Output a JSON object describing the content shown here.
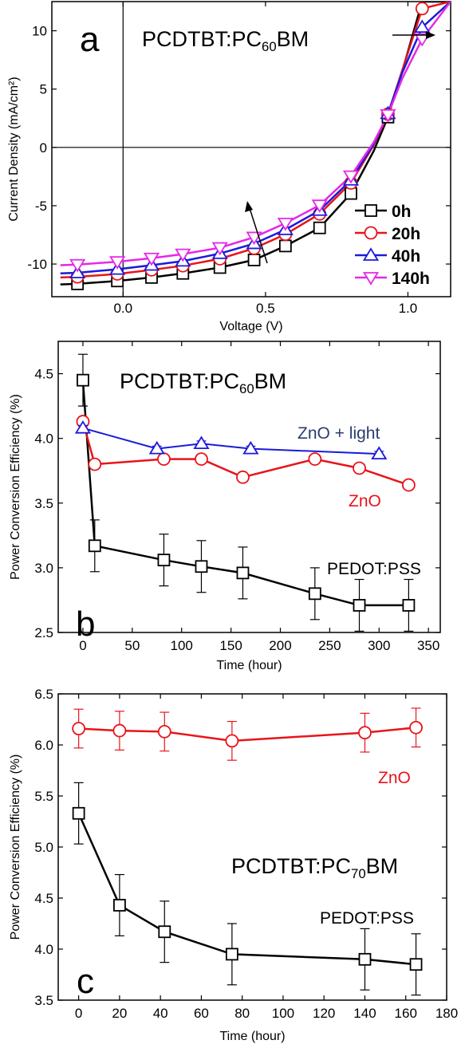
{
  "chart_data": [
    {
      "id": "a",
      "type": "line",
      "panel_label": "a",
      "title": "PCDTBT:PC",
      "title_sub": "60",
      "title_tail": "BM",
      "xlabel": "Voltage (V)",
      "ylabel": "Current Density (mA/cm²)",
      "xlim": [
        -0.25,
        1.15
      ],
      "ylim": [
        -12.8,
        12.5
      ],
      "xticks": [
        0.0,
        0.5,
        1.0
      ],
      "xtick_labels": [
        "0.0",
        "0.5",
        "1.0"
      ],
      "yticks": [
        -10,
        -5,
        0,
        5,
        10
      ],
      "ytick_labels": [
        "-10",
        "-5",
        "0",
        "5",
        "10"
      ],
      "legend_position": "bottom-right",
      "series": [
        {
          "name": "0h",
          "color": "#000000",
          "marker": "square",
          "points": [
            [
              -0.22,
              -11.75
            ],
            [
              -0.16,
              -11.7
            ],
            [
              -0.02,
              -11.45
            ],
            [
              0.1,
              -11.15
            ],
            [
              0.21,
              -10.8
            ],
            [
              0.34,
              -10.3
            ],
            [
              0.46,
              -9.65
            ],
            [
              0.57,
              -8.45
            ],
            [
              0.69,
              -6.9
            ],
            [
              0.8,
              -3.95
            ],
            [
              0.88,
              -0.3
            ],
            [
              0.93,
              2.6
            ],
            [
              0.98,
              6.5
            ],
            [
              1.05,
              12.5
            ],
            [
              1.15,
              12.5
            ]
          ]
        },
        {
          "name": "20h",
          "color": "#e8141a",
          "marker": "circle",
          "points": [
            [
              -0.22,
              -11.15
            ],
            [
              -0.16,
              -11.1
            ],
            [
              -0.02,
              -10.85
            ],
            [
              0.1,
              -10.5
            ],
            [
              0.21,
              -10.15
            ],
            [
              0.34,
              -9.55
            ],
            [
              0.46,
              -8.65
            ],
            [
              0.57,
              -7.45
            ],
            [
              0.69,
              -5.7
            ],
            [
              0.8,
              -3.05
            ],
            [
              0.88,
              0.2
            ],
            [
              0.93,
              2.85
            ],
            [
              0.98,
              6.6
            ],
            [
              1.05,
              11.9
            ],
            [
              1.15,
              12.5
            ]
          ]
        },
        {
          "name": "40h",
          "color": "#1a1adc",
          "marker": "triangle-up",
          "points": [
            [
              -0.22,
              -10.8
            ],
            [
              -0.16,
              -10.75
            ],
            [
              -0.02,
              -10.45
            ],
            [
              0.1,
              -10.1
            ],
            [
              0.21,
              -9.75
            ],
            [
              0.34,
              -9.1
            ],
            [
              0.46,
              -8.25
            ],
            [
              0.57,
              -7.05
            ],
            [
              0.69,
              -5.4
            ],
            [
              0.8,
              -2.8
            ],
            [
              0.88,
              0.3
            ],
            [
              0.93,
              2.9
            ],
            [
              0.98,
              6.4
            ],
            [
              1.05,
              10.3
            ],
            [
              1.15,
              12.5
            ]
          ]
        },
        {
          "name": "140h",
          "color": "#e628e6",
          "marker": "triangle-down",
          "points": [
            [
              -0.22,
              -10.1
            ],
            [
              -0.16,
              -10.05
            ],
            [
              -0.02,
              -9.8
            ],
            [
              0.1,
              -9.5
            ],
            [
              0.21,
              -9.15
            ],
            [
              0.34,
              -8.6
            ],
            [
              0.46,
              -7.7
            ],
            [
              0.57,
              -6.5
            ],
            [
              0.69,
              -4.95
            ],
            [
              0.8,
              -2.45
            ],
            [
              0.88,
              0.45
            ],
            [
              0.93,
              2.8
            ],
            [
              0.98,
              5.9
            ],
            [
              1.05,
              9.3
            ],
            [
              1.15,
              12.5
            ]
          ]
        }
      ],
      "marker_x": [
        -0.16,
        -0.02,
        0.1,
        0.21,
        0.34,
        0.46,
        0.57,
        0.69,
        0.8,
        0.93,
        1.05
      ]
    },
    {
      "id": "b",
      "type": "line",
      "panel_label": "b",
      "title": "PCDTBT:PC",
      "title_sub": "60",
      "title_tail": "BM",
      "xlabel": "Time (hour)",
      "ylabel": "Power Conversion Efficiency (%)",
      "xlim": [
        -25,
        362
      ],
      "ylim": [
        2.5,
        4.75
      ],
      "xticks": [
        0,
        50,
        100,
        150,
        200,
        250,
        300,
        350
      ],
      "xtick_labels": [
        "0",
        "50",
        "100",
        "150",
        "200",
        "250",
        "300",
        "350"
      ],
      "yticks": [
        2.5,
        3.0,
        3.5,
        4.0,
        4.5
      ],
      "ytick_labels": [
        "2.5",
        "3.0",
        "3.5",
        "4.0",
        "4.5"
      ],
      "series": [
        {
          "name": "PEDOT:PSS",
          "color": "#000000",
          "label_color": "#000000",
          "marker": "square",
          "line_width": 2.5,
          "x": [
            0,
            12,
            82,
            120,
            162,
            235,
            280,
            330
          ],
          "y": [
            4.45,
            3.17,
            3.06,
            3.01,
            2.96,
            2.8,
            2.71,
            2.71
          ],
          "err": [
            0.2,
            0.2,
            0.2,
            0.2,
            0.2,
            0.2,
            0.2,
            0.2
          ]
        },
        {
          "name": "ZnO",
          "color": "#e8141a",
          "label_color": "#e8141a",
          "marker": "circle",
          "line_width": 2.5,
          "x": [
            0,
            12,
            82,
            120,
            162,
            235,
            280,
            330
          ],
          "y": [
            4.13,
            3.8,
            3.84,
            3.84,
            3.7,
            3.84,
            3.77,
            3.64
          ],
          "err": [
            0.03,
            0.03,
            0.03,
            0.03,
            0.03,
            0.03,
            0.03,
            0.03
          ]
        },
        {
          "name": "ZnO + light",
          "color": "#1a1adc",
          "label_color": "#2a3d6e",
          "marker": "triangle-up",
          "line_width": 2,
          "x": [
            0,
            75,
            120,
            170,
            300
          ],
          "y": [
            4.08,
            3.92,
            3.96,
            3.92,
            3.88
          ],
          "err": [
            0.02,
            0.02,
            0.02,
            0.02,
            0.02
          ]
        }
      ]
    },
    {
      "id": "c",
      "type": "line",
      "panel_label": "c",
      "title": "PCDTBT:PC",
      "title_sub": "70",
      "title_tail": "BM",
      "xlabel": "Time (hour)",
      "ylabel": "Power Conversion Efficiency (%)",
      "xlim": [
        -10,
        180
      ],
      "ylim": [
        3.5,
        6.5
      ],
      "xticks": [
        0,
        20,
        40,
        60,
        80,
        100,
        120,
        140,
        160,
        180
      ],
      "xtick_labels": [
        "0",
        "20",
        "40",
        "60",
        "80",
        "100",
        "120",
        "140",
        "160",
        "180"
      ],
      "yticks": [
        3.5,
        4.0,
        4.5,
        5.0,
        5.5,
        6.0,
        6.5
      ],
      "ytick_labels": [
        "3.5",
        "4.0",
        "4.5",
        "5.0",
        "5.5",
        "6.0",
        "6.5"
      ],
      "series": [
        {
          "name": "ZnO",
          "color": "#e8141a",
          "label_color": "#e8141a",
          "marker": "circle",
          "line_width": 2.5,
          "x": [
            0,
            20,
            42,
            75,
            140,
            165
          ],
          "y": [
            6.16,
            6.14,
            6.13,
            6.04,
            6.12,
            6.17
          ],
          "err": [
            0.19,
            0.19,
            0.19,
            0.19,
            0.19,
            0.19
          ]
        },
        {
          "name": "PEDOT:PSS",
          "color": "#000000",
          "label_color": "#000000",
          "marker": "square",
          "line_width": 2.5,
          "x": [
            0,
            20,
            42,
            75,
            140,
            165
          ],
          "y": [
            5.33,
            4.43,
            4.17,
            3.95,
            3.9,
            3.85
          ],
          "err": [
            0.3,
            0.3,
            0.3,
            0.3,
            0.3,
            0.3
          ]
        }
      ]
    }
  ]
}
